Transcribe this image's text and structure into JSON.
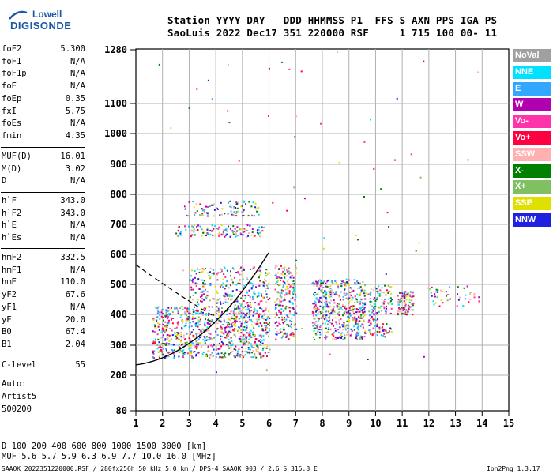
{
  "logo": {
    "top": "Lowell",
    "main": "DIGISONDE"
  },
  "header": {
    "line1": "Station YYYY DAY   DDD HHMMSS P1  FFS S AXN PPS IGA PS",
    "line2": "SaoLuis 2022 Dec17 351 220000 RSF     1 715 100 00- 11"
  },
  "params_group1": [
    {
      "name": "foF2",
      "value": "5.300"
    },
    {
      "name": "foF1",
      "value": "N/A"
    },
    {
      "name": "foF1p",
      "value": "N/A"
    },
    {
      "name": "foE",
      "value": "N/A"
    },
    {
      "name": "foEp",
      "value": "0.35"
    },
    {
      "name": "fxI",
      "value": "5.75"
    },
    {
      "name": "foEs",
      "value": "N/A"
    },
    {
      "name": "fmin",
      "value": "4.35"
    }
  ],
  "params_group2": [
    {
      "name": "MUF(D)",
      "value": "16.01"
    },
    {
      "name": "M(D)",
      "value": "3.02"
    },
    {
      "name": "D",
      "value": "N/A"
    }
  ],
  "params_group3": [
    {
      "name": "h`F",
      "value": "343.0"
    },
    {
      "name": "h`F2",
      "value": "343.0"
    },
    {
      "name": "h`E",
      "value": "N/A"
    },
    {
      "name": "h`Es",
      "value": "N/A"
    }
  ],
  "params_group4": [
    {
      "name": "hmF2",
      "value": "332.5"
    },
    {
      "name": "hmF1",
      "value": "N/A"
    },
    {
      "name": "hmE",
      "value": "110.0"
    },
    {
      "name": "yF2",
      "value": "67.6"
    },
    {
      "name": "yF1",
      "value": "N/A"
    },
    {
      "name": "yE",
      "value": "20.0"
    },
    {
      "name": "B0",
      "value": "67.4"
    },
    {
      "name": "B1",
      "value": "2.04"
    }
  ],
  "params_group5": [
    {
      "name": "C-level",
      "value": "55"
    }
  ],
  "auto_info": [
    "Auto:",
    "Artist5",
    "500200"
  ],
  "legend": [
    {
      "label": "NoVal",
      "color": "#a0a0a0"
    },
    {
      "label": "NNE",
      "color": "#00e0ff"
    },
    {
      "label": "E",
      "color": "#33a6ff"
    },
    {
      "label": "W",
      "color": "#b000b0"
    },
    {
      "label": "Vo-",
      "color": "#ff33aa"
    },
    {
      "label": "Vo+",
      "color": "#ff0040"
    },
    {
      "label": "SSW",
      "color": "#ffb0b0"
    },
    {
      "label": "X-",
      "color": "#008000"
    },
    {
      "label": "X+",
      "color": "#80c060"
    },
    {
      "label": "SSE",
      "color": "#e0e000"
    },
    {
      "label": "NNW",
      "color": "#2020e0"
    }
  ],
  "plot": {
    "x_ticks": [
      "1",
      "2",
      "3",
      "4",
      "5",
      "6",
      "7",
      "8",
      "9",
      "10",
      "11",
      "12",
      "13",
      "14",
      "15"
    ],
    "y_ticks": [
      "80",
      "200",
      "300",
      "400",
      "500",
      "600",
      "700",
      "800",
      "900",
      "1000",
      "1100",
      "1280"
    ]
  },
  "bottom": {
    "d_line": "D     100  200  400  600  800 1000 1500 3000 [km]",
    "muf_line": "MUF    5.6  5.7  5.9  6.3  6.9  7.7 10.0 16.0 [MHz]"
  },
  "footer": {
    "left": "SAAOK_2022351220000.RSF / 280fx256h 50 kHz 5.0 km / DPS-4 SAAOK 903 / 2.6 S 315.8 E",
    "right": "Ion2Png 1.3.17"
  }
}
